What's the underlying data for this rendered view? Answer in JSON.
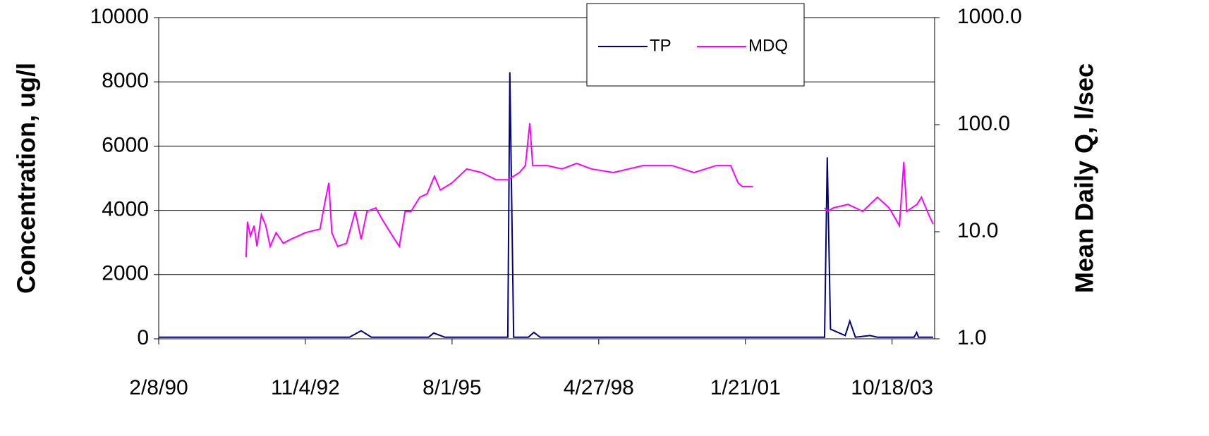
{
  "chart_data": {
    "type": "line",
    "y_label": "Concentration, ug/l",
    "y2_label": "Mean Daily Q, l/sec",
    "xlim": [
      0,
      5290
    ],
    "xticks": [
      {
        "value": 0,
        "label": "2/8/90"
      },
      {
        "value": 1000,
        "label": "11/4/92"
      },
      {
        "value": 2000,
        "label": "8/1/95"
      },
      {
        "value": 3000,
        "label": "4/27/98"
      },
      {
        "value": 4000,
        "label": "1/21/01"
      },
      {
        "value": 5000,
        "label": "10/18/03"
      }
    ],
    "ylim": [
      0,
      10000
    ],
    "yticks": [
      0,
      2000,
      4000,
      6000,
      8000,
      10000
    ],
    "y2lim": [
      1,
      1000
    ],
    "y2log": true,
    "y2ticks": [
      {
        "value": 1,
        "label": "1.0"
      },
      {
        "value": 10,
        "label": "10.0"
      },
      {
        "value": 100,
        "label": "100.0"
      },
      {
        "value": 1000,
        "label": "1000.0"
      }
    ],
    "grid": true,
    "legend": "top",
    "series": [
      {
        "name": "TP",
        "color": "#000080",
        "x": [
          0,
          500,
          1300,
          1380,
          1450,
          1840,
          1875,
          1950,
          2380,
          2394,
          2420,
          2520,
          2558,
          2600,
          3000,
          3800,
          4540,
          4558,
          4580,
          4680,
          4712,
          4750,
          4850,
          4900,
          5150,
          5168,
          5180,
          5280
        ],
        "values": [
          50,
          50,
          50,
          250,
          50,
          50,
          180,
          50,
          50,
          8300,
          50,
          50,
          200,
          50,
          50,
          50,
          50,
          5650,
          300,
          100,
          550,
          50,
          100,
          50,
          50,
          200,
          50,
          50
        ]
      },
      {
        "name": "MDQ",
        "color": "#ff00ff",
        "axis": "y2",
        "x": [
          596,
          605,
          625,
          650,
          670,
          700,
          730,
          760,
          800,
          850,
          900,
          950,
          1000,
          1100,
          1130,
          1160,
          1180,
          1220,
          1280,
          1340,
          1380,
          1420,
          1480,
          1520,
          1580,
          1640,
          1680,
          1720,
          1780,
          1830,
          1880,
          1920,
          2000,
          2100,
          2200,
          2300,
          2380,
          2460,
          2500,
          2530,
          2550,
          2650,
          2750,
          2850,
          2950,
          3100,
          3300,
          3500,
          3650,
          3800,
          3900,
          3950,
          3980,
          4050,
          4300,
          4540,
          4560,
          4600,
          4700,
          4800,
          4900,
          4980,
          5050,
          5080,
          5100,
          5170,
          5200,
          5250,
          5280
        ],
        "values": [
          5.8,
          12.4,
          9.1,
          11.4,
          7.3,
          14.4,
          11.4,
          7.3,
          9.8,
          7.8,
          8.5,
          9.1,
          9.8,
          10.6,
          18,
          28.6,
          9.8,
          7.3,
          7.8,
          15.5,
          8.5,
          15.5,
          16.7,
          13.3,
          9.8,
          7.3,
          15.5,
          15.5,
          21,
          22.6,
          33,
          24.5,
          28.6,
          38.6,
          35.7,
          30.6,
          30.6,
          35.7,
          41.5,
          103,
          41.5,
          41.5,
          38.6,
          43.5,
          38.6,
          35.7,
          41.5,
          41.5,
          35.7,
          41.5,
          41.5,
          28.6,
          26.4,
          26.4,
          null,
          16.7,
          15.5,
          16.7,
          18,
          15.5,
          21,
          16.7,
          11.4,
          44.8,
          15.5,
          18,
          21,
          14.4,
          11.8
        ]
      }
    ]
  }
}
